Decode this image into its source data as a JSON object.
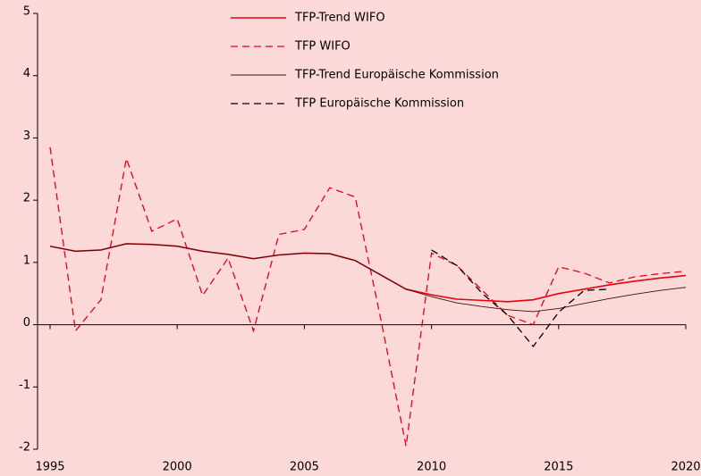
{
  "chart_data": {
    "type": "line",
    "x": [
      1995,
      1996,
      1997,
      1998,
      1999,
      2000,
      2001,
      2002,
      2003,
      2004,
      2005,
      2006,
      2007,
      2008,
      2009,
      2010,
      2011,
      2012,
      2013,
      2014,
      2015,
      2016,
      2017,
      2018,
      2019,
      2020
    ],
    "xlim": [
      1995,
      2020
    ],
    "xticks": [
      1995,
      2000,
      2005,
      2010,
      2015,
      2020
    ],
    "ylim": [
      -2,
      5
    ],
    "yticks": [
      -2,
      -1,
      0,
      1,
      2,
      3,
      4,
      5
    ],
    "series": [
      {
        "name": "TFP-Trend WIFO",
        "color": "#e8000f",
        "dashed": false,
        "values": [
          1.26,
          1.18,
          1.2,
          1.3,
          1.29,
          1.26,
          1.18,
          1.13,
          1.06,
          1.12,
          1.15,
          1.14,
          1.03,
          0.8,
          0.57,
          0.48,
          0.41,
          0.39,
          0.37,
          0.4,
          0.5,
          0.57,
          0.64,
          0.7,
          0.75,
          0.79
        ]
      },
      {
        "name": "TFP WIFO",
        "color": "#e8000f",
        "dashed": true,
        "values": [
          2.85,
          -0.1,
          0.4,
          2.67,
          1.5,
          1.7,
          0.47,
          1.07,
          -0.1,
          1.45,
          1.53,
          2.2,
          2.05,
          0.1,
          -1.95,
          1.15,
          0.95,
          0.55,
          0.15,
          0.0,
          0.93,
          0.83,
          0.67,
          0.77,
          0.82,
          0.86
        ]
      },
      {
        "name": "TFP-Trend Europäische Kommission",
        "color": "#3a1010",
        "dashed": false,
        "values": [
          1.26,
          1.18,
          1.2,
          1.3,
          1.29,
          1.26,
          1.18,
          1.13,
          1.06,
          1.12,
          1.15,
          1.14,
          1.03,
          0.8,
          0.57,
          0.45,
          0.35,
          0.29,
          0.24,
          0.21,
          0.26,
          0.34,
          0.42,
          0.49,
          0.55,
          0.6
        ]
      },
      {
        "name": "TFP Europäische Kommission",
        "color": "#000000",
        "dashed": true,
        "values": [
          null,
          null,
          null,
          null,
          null,
          null,
          null,
          null,
          null,
          null,
          null,
          null,
          null,
          null,
          null,
          1.2,
          0.95,
          0.5,
          0.15,
          -0.35,
          0.2,
          0.55,
          0.57,
          null,
          null,
          null
        ]
      }
    ]
  }
}
